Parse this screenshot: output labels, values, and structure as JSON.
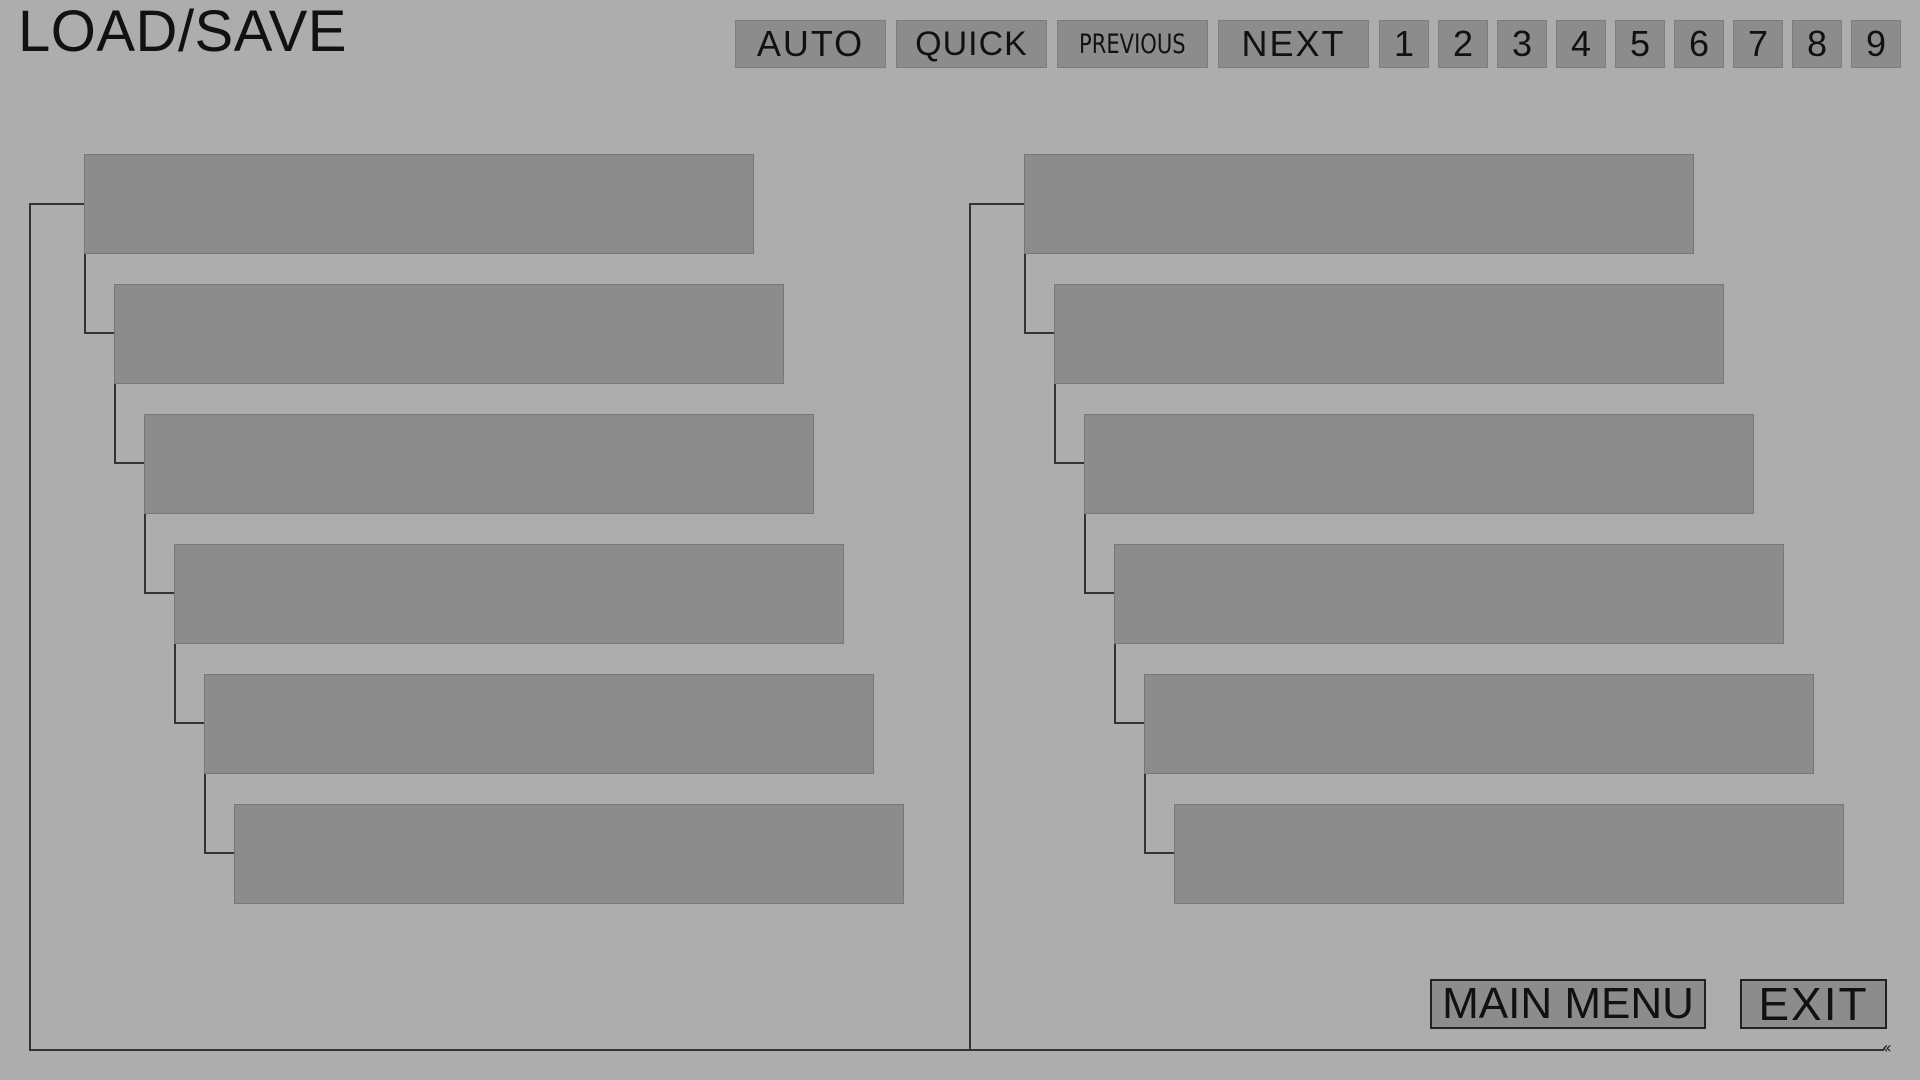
{
  "title": "LOAD/SAVE",
  "tabs": {
    "auto": "AUTO",
    "quick": "QUICK",
    "previous": "PREVIOUS",
    "next": "NEXT",
    "pages": [
      "1",
      "2",
      "3",
      "4",
      "5",
      "6",
      "7",
      "8",
      "9"
    ]
  },
  "buttons": {
    "main_menu": "MAIN MENU",
    "exit": "EXIT",
    "collapse": "«"
  }
}
